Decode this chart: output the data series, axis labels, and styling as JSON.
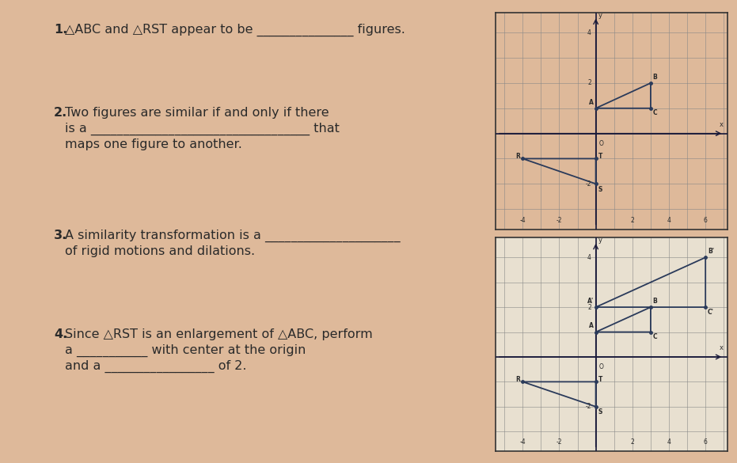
{
  "background_color": "#deb99a",
  "text_color": "#2a2a2a",
  "body_fontsize": 11.5,
  "graph1": {
    "xlim": [
      -5.5,
      7.2
    ],
    "ylim": [
      -3.8,
      4.8
    ],
    "xticks": [
      -4,
      -2,
      2,
      4,
      6
    ],
    "yticks": [
      -2,
      2,
      4
    ],
    "ABC": {
      "A": [
        0,
        1
      ],
      "B": [
        3,
        2
      ],
      "C": [
        3,
        1
      ]
    },
    "RST": {
      "R": [
        -4,
        -1
      ],
      "S": [
        0,
        -2
      ],
      "T": [
        0,
        -1
      ]
    },
    "graph_bg": "#deb99a"
  },
  "graph2": {
    "xlim": [
      -5.5,
      7.2
    ],
    "ylim": [
      -3.8,
      4.8
    ],
    "xticks": [
      -4,
      -2,
      2,
      4,
      6
    ],
    "yticks": [
      -2,
      2,
      4
    ],
    "ABC": {
      "A": [
        0,
        1
      ],
      "B": [
        3,
        2
      ],
      "C": [
        3,
        1
      ]
    },
    "RST": {
      "R": [
        -4,
        -1
      ],
      "S": [
        0,
        -2
      ],
      "T": [
        0,
        -1
      ]
    },
    "A1B1C1": {
      "A1": [
        0,
        2
      ],
      "B1": [
        6,
        4
      ],
      "C1": [
        6,
        2
      ]
    },
    "graph_bg": "#e8e0d0"
  },
  "line_color": "#2a3a5a",
  "q1_text": [
    "△ABC and △RST appear to be _______________ figures."
  ],
  "q2_text": [
    "Two figures are similar if and only if there",
    "is a __________________________________ that",
    "maps one figure to another."
  ],
  "q3_text": [
    "A similarity transformation is a _____________________",
    "of rigid motions and dilations."
  ],
  "q4_text": [
    "Since △RST is an enlargement of △ABC, perform",
    "a ___________ with center at the origin",
    "and a _________________ of 2."
  ]
}
